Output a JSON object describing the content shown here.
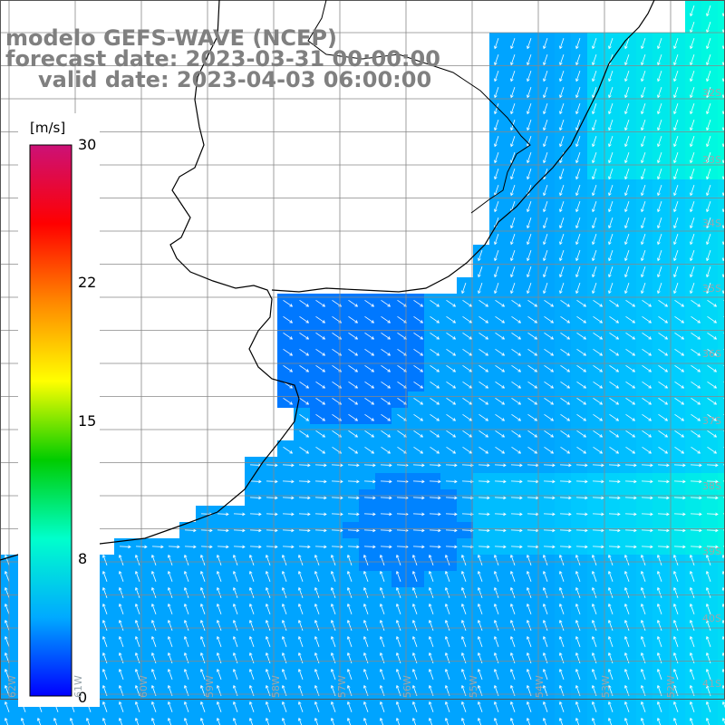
{
  "title": {
    "line1": "modelo GEFS-WAVE (NCEP)",
    "line2": "forecast date: 2023-03-31 00:00:00",
    "line3": "valid date: 2023-04-03 06:00:00"
  },
  "colorbar": {
    "unit": "[m/s]",
    "ticks": [
      "30",
      "22",
      "15",
      "8",
      "0"
    ],
    "range": [
      0,
      30
    ],
    "colors": [
      "#0000ff",
      "#00aaff",
      "#00ffcc",
      "#00cc00",
      "#ffff00",
      "#ff8800",
      "#ff0000",
      "#cc1177"
    ]
  },
  "grid": {
    "lat_labels": [
      "32S",
      "33S",
      "34S",
      "35S",
      "36S",
      "37S",
      "38S",
      "39S",
      "40S",
      "41S"
    ],
    "lon_labels": [
      "62W",
      "61W",
      "60W",
      "59W",
      "58W",
      "57W",
      "56W",
      "55W",
      "54W",
      "53W",
      "52W"
    ]
  },
  "field": {
    "quantity": "wind speed with direction arrows",
    "land_color": "#ffffff",
    "coast_color": "#000000"
  }
}
